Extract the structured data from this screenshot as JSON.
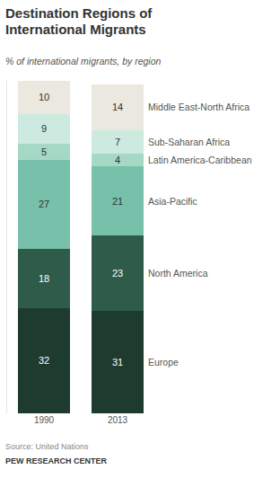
{
  "chart_data": {
    "type": "bar",
    "title": "Destination Regions of International Migrants",
    "subtitle": "% of international migrants, by region",
    "annotations": [
      "Source: United Nations",
      "PEW RESEARCH CENTER"
    ],
    "categories": [
      "1990",
      "2013"
    ],
    "series": [
      {
        "name": "Europe",
        "color": "#1e3b30",
        "values": [
          32,
          31
        ]
      },
      {
        "name": "North America",
        "color": "#2f5c4a",
        "values": [
          18,
          23
        ]
      },
      {
        "name": "Asia-Pacific",
        "color": "#77c1aa",
        "values": [
          27,
          21
        ]
      },
      {
        "name": "Latin America-Caribbean",
        "color": "#a5d8c5",
        "values": [
          5,
          4
        ]
      },
      {
        "name": "Sub-Saharan Africa",
        "color": "#cdeae0",
        "values": [
          9,
          7
        ]
      },
      {
        "name": "Middle East-North Africa",
        "color": "#ebe8e0",
        "values": [
          10,
          14
        ]
      }
    ],
    "stacked": true,
    "data_labels": true,
    "tick_labels": "x",
    "ylim": [
      0,
      101
    ]
  }
}
